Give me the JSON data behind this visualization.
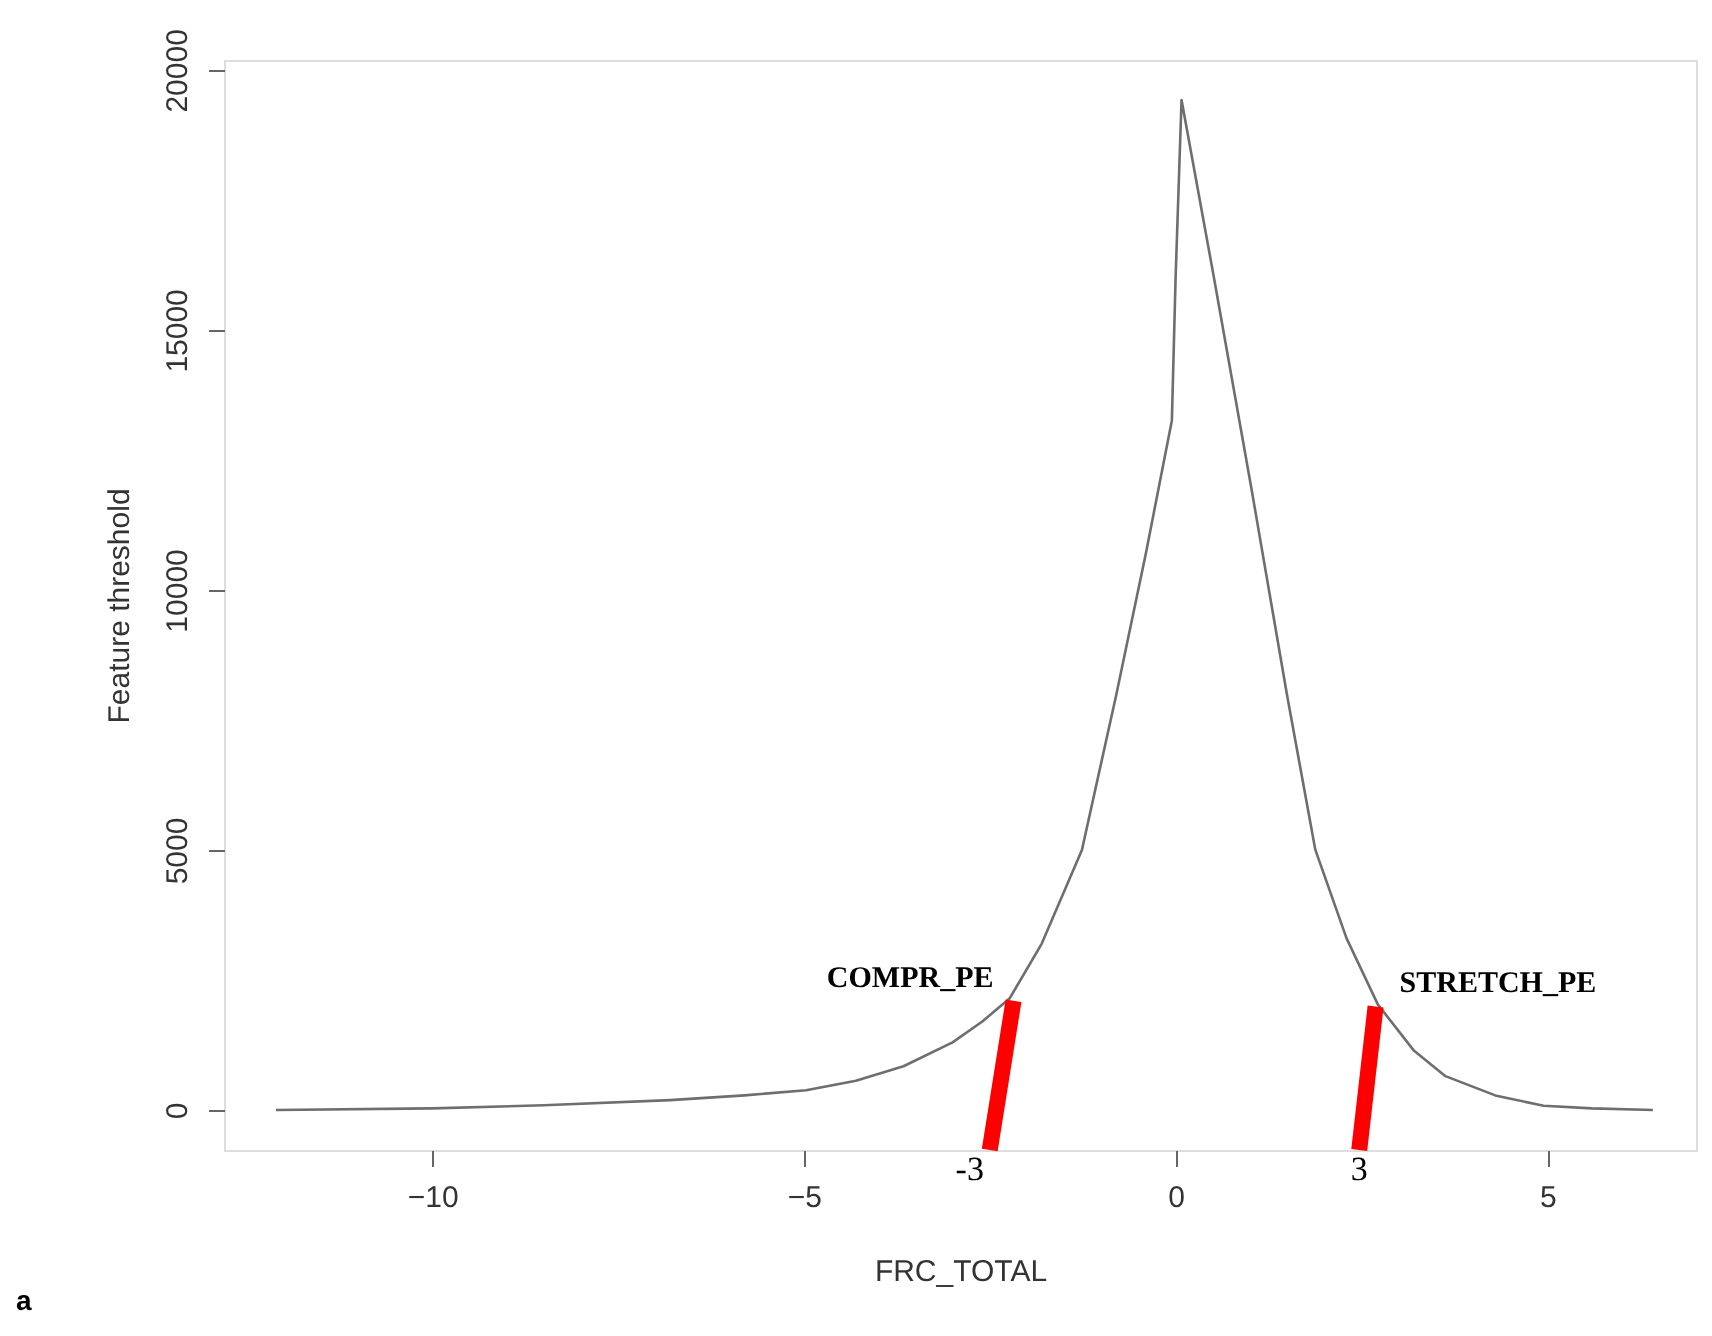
{
  "chart_data": {
    "type": "line",
    "xlabel": "FRC_TOTAL",
    "ylabel": "Feature threshold",
    "xlim": [
      -12.8,
      7.0
    ],
    "ylim": [
      -770,
      20190
    ],
    "xticks": [
      -10,
      -5,
      0,
      5
    ],
    "yticks": [
      0,
      5000,
      10000,
      15000,
      20000
    ],
    "grid": false,
    "marker": "none",
    "line_style": "solid",
    "series": [
      {
        "color": "#6e6e6e",
        "x": [
          -12.1,
          -10,
          -8.5,
          -6.8,
          -5.8,
          -4.97,
          -4.3,
          -3.66,
          -3.0,
          -2.6,
          -2.23,
          -1.8,
          -1.26,
          -0.8,
          -0.4,
          -0.05,
          0.0,
          0.08,
          0.51,
          1.02,
          1.5,
          1.88,
          2.3,
          2.72,
          3.2,
          3.63,
          4.3,
          4.95,
          5.6,
          6.42
        ],
        "values": [
          0,
          30,
          90,
          190,
          280,
          380,
          560,
          840,
          1300,
          1700,
          2150,
          3200,
          5000,
          7970,
          10700,
          13260,
          16000,
          19420,
          16050,
          11950,
          7970,
          5000,
          3300,
          2030,
          1150,
          650,
          280,
          80,
          30,
          0
        ]
      },
      {
        "color": "#ff0000",
        "x": [
          -2.5,
          -2.18
        ],
        "values": [
          -770,
          2100
        ]
      },
      {
        "color": "#ff0000",
        "x": [
          2.47,
          2.69
        ],
        "values": [
          -770,
          1990
        ]
      }
    ],
    "annotations": [
      "COMPR_PE",
      "STRETCH_PE",
      "-3",
      "3",
      "a"
    ]
  }
}
